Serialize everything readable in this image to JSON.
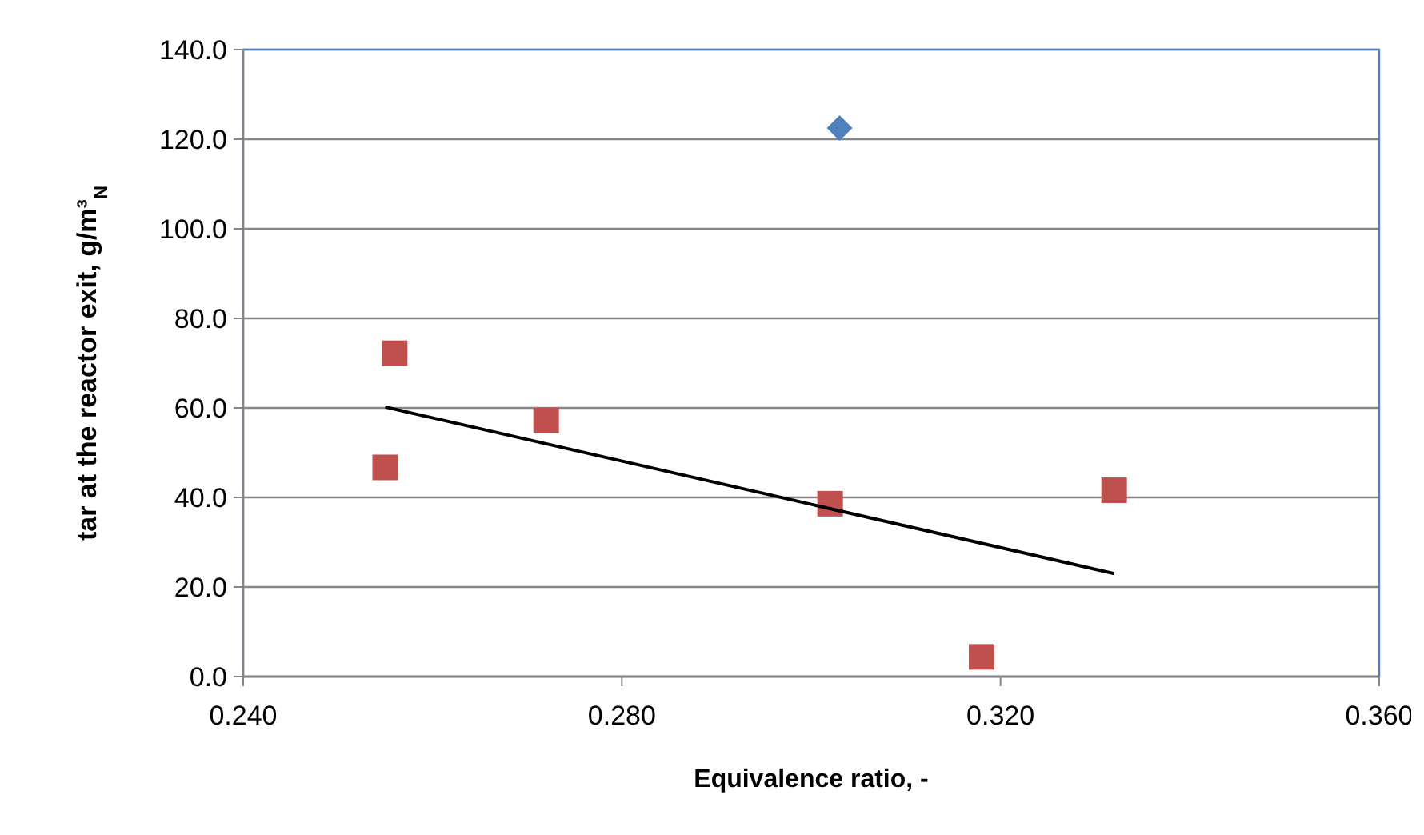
{
  "chart_data": {
    "type": "scatter",
    "xlabel": "Equivalence ratio, -",
    "ylabel": "tar at the reactor exit, g/m³$_{N}$",
    "xlim": [
      0.24,
      0.36
    ],
    "xticks": [
      {
        "value": 0.24,
        "label": "0.240"
      },
      {
        "value": 0.28,
        "label": "0.280"
      },
      {
        "value": 0.32,
        "label": "0.320"
      },
      {
        "value": 0.36,
        "label": "0.360"
      }
    ],
    "ylim": [
      0,
      140
    ],
    "yticks": [
      {
        "value": 0,
        "label": "0.0"
      },
      {
        "value": 20,
        "label": "20.0"
      },
      {
        "value": 40,
        "label": "40.0"
      },
      {
        "value": 60,
        "label": "60.0"
      },
      {
        "value": 80,
        "label": "80.0"
      },
      {
        "value": 100,
        "label": "100.0"
      },
      {
        "value": 120,
        "label": "120.0"
      },
      {
        "value": 140,
        "label": "140.0"
      }
    ],
    "grid": "y",
    "series": [
      {
        "marker": "diamond",
        "color": "#4f81bd",
        "x": [
          0.303
        ],
        "values": [
          122.5
        ]
      },
      {
        "marker": "square",
        "color": "#c0504d",
        "x": [
          0.256,
          0.255,
          0.272,
          0.302,
          0.318,
          0.332
        ],
        "values": [
          72.2,
          46.7,
          57.2,
          38.6,
          4.4,
          41.6
        ]
      },
      {
        "type": "line",
        "marker": "none",
        "line_style": "solid",
        "color": "#000000",
        "x": [
          0.255,
          0.332
        ],
        "values": [
          60.2,
          23.0
        ]
      }
    ]
  }
}
